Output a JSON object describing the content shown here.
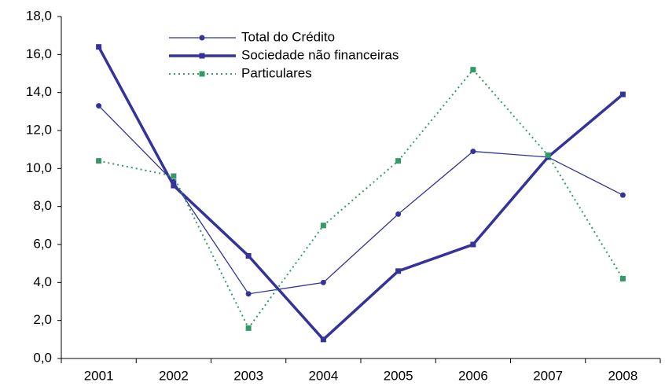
{
  "chart_data": {
    "type": "line",
    "categories": [
      "2001",
      "2002",
      "2003",
      "2004",
      "2005",
      "2006",
      "2007",
      "2008"
    ],
    "series": [
      {
        "name": "Total do Crédito",
        "color": "#333399",
        "marker": "circle",
        "line_style": "solid",
        "values": [
          13.3,
          9.3,
          3.4,
          4.0,
          7.6,
          10.9,
          10.6,
          8.6
        ]
      },
      {
        "name": "Sociedade não financeiras",
        "color": "#333399",
        "marker": "square",
        "line_style": "bold",
        "values": [
          16.4,
          9.1,
          5.4,
          1.0,
          4.6,
          6.0,
          10.6,
          13.9
        ]
      },
      {
        "name": "Particulares",
        "color": "#339966",
        "marker": "square",
        "line_style": "dotted",
        "values": [
          10.4,
          9.6,
          1.6,
          7.0,
          10.4,
          15.2,
          10.7,
          4.2
        ]
      }
    ],
    "ylim": [
      0,
      18
    ],
    "yticks": [
      {
        "value": 0,
        "label": "0,0"
      },
      {
        "value": 2,
        "label": "2,0"
      },
      {
        "value": 4,
        "label": "4,0"
      },
      {
        "value": 6,
        "label": "6,0"
      },
      {
        "value": 8,
        "label": "8,0"
      },
      {
        "value": 10,
        "label": "10,0"
      },
      {
        "value": 12,
        "label": "12,0"
      },
      {
        "value": 14,
        "label": "14,0"
      },
      {
        "value": 16,
        "label": "16,0"
      },
      {
        "value": 18,
        "label": "18,0"
      }
    ],
    "grid": false,
    "legend": "top"
  }
}
